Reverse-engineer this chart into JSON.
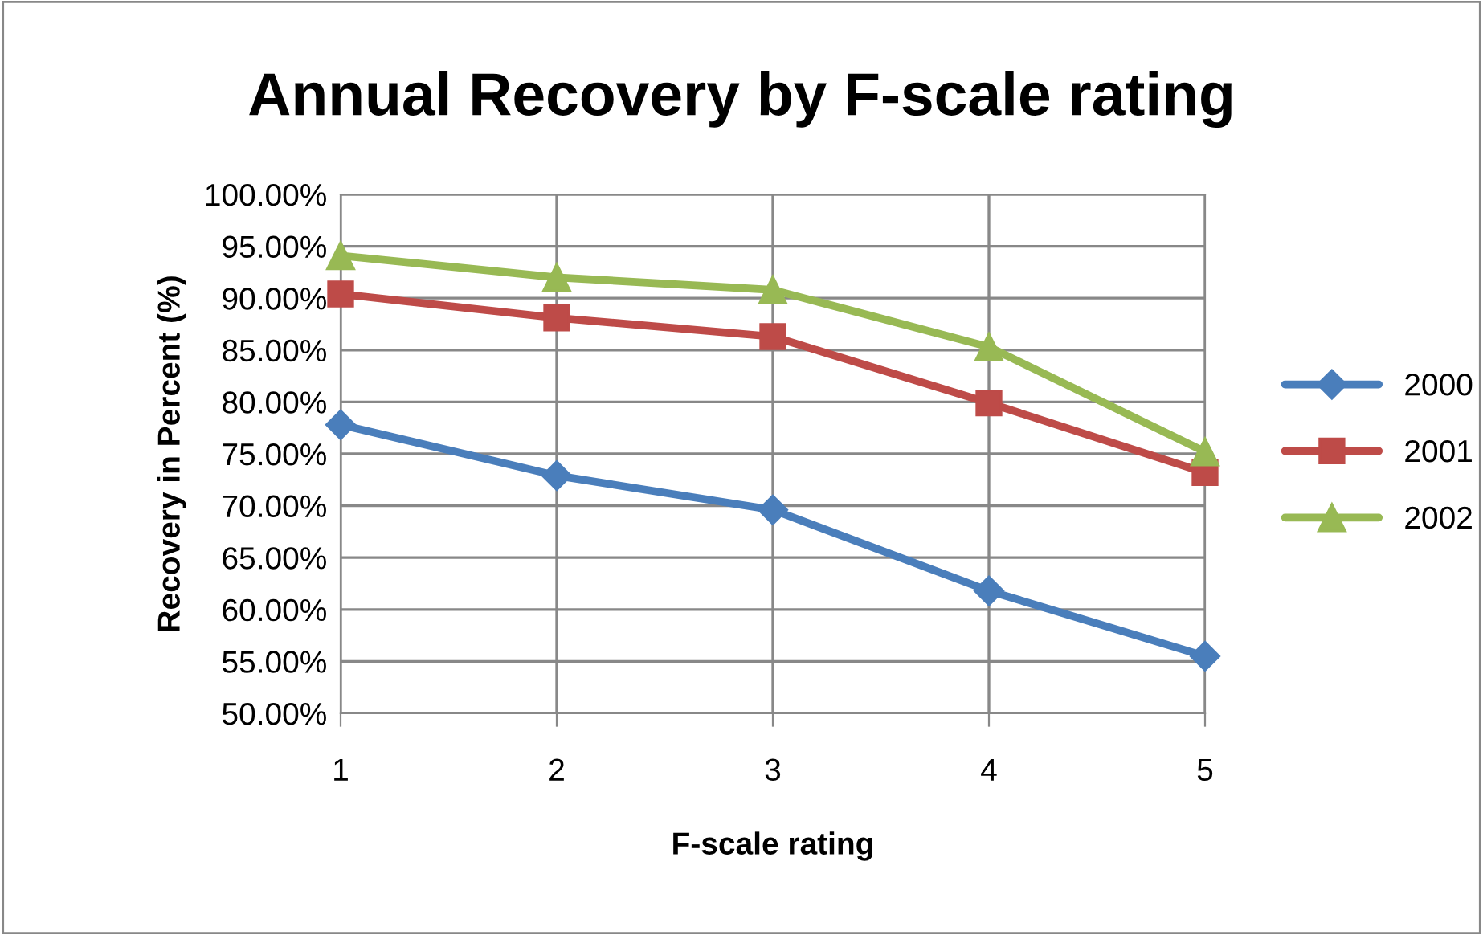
{
  "chart_data": {
    "type": "line",
    "title": "Annual Recovery by F-scale rating",
    "xlabel": "F-scale rating",
    "ylabel": "Recovery in Percent (%)",
    "categories": [
      "1",
      "2",
      "3",
      "4",
      "5"
    ],
    "series": [
      {
        "name": "2000",
        "color": "#4a7ebb",
        "marker": "diamond",
        "values": [
          77.8,
          72.9,
          69.6,
          61.8,
          55.5
        ]
      },
      {
        "name": "2001",
        "color": "#be4b48",
        "marker": "square",
        "values": [
          90.4,
          88.1,
          86.3,
          79.9,
          73.2
        ]
      },
      {
        "name": "2002",
        "color": "#98b954",
        "marker": "triangle",
        "values": [
          94.1,
          92.0,
          90.8,
          85.3,
          75.2
        ]
      }
    ],
    "ylim": [
      50,
      100
    ],
    "yticks": [
      {
        "value": 50,
        "label": "50.00%"
      },
      {
        "value": 55,
        "label": "55.00%"
      },
      {
        "value": 60,
        "label": "60.00%"
      },
      {
        "value": 65,
        "label": "65.00%"
      },
      {
        "value": 70,
        "label": "70.00%"
      },
      {
        "value": 75,
        "label": "75.00%"
      },
      {
        "value": 80,
        "label": "80.00%"
      },
      {
        "value": 85,
        "label": "85.00%"
      },
      {
        "value": 90,
        "label": "90.00%"
      },
      {
        "value": 95,
        "label": "95.00%"
      },
      {
        "value": 100,
        "label": "100.00%"
      }
    ],
    "grid": true,
    "legend": "right",
    "line_style": "solid"
  }
}
